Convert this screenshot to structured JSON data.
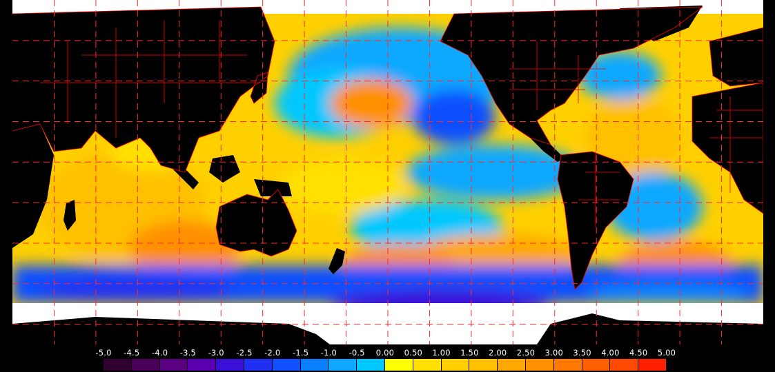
{
  "map": {
    "colors": {
      "land": "#000000",
      "ice": "#ffffff",
      "borders": "#ff0000",
      "grid": "#ff2a2a"
    }
  },
  "legend": {
    "labels": [
      "-5.0",
      "-4.5",
      "-4.0",
      "-3.5",
      "-3.0",
      "-2.5",
      "-2.0",
      "-1.5",
      "-1.0",
      "-0.5",
      "0.00",
      "0.50",
      "1.00",
      "1.50",
      "2.00",
      "2.50",
      "3.00",
      "3.50",
      "4.00",
      "4.50",
      "5.00"
    ],
    "colors": [
      "#300030",
      "#4a0058",
      "#5a0080",
      "#5a00b0",
      "#3a10d8",
      "#2030f0",
      "#1050ff",
      "#0a80ff",
      "#10a8ff",
      "#00c8ff",
      "#ffff00",
      "#ffe000",
      "#ffd000",
      "#ffc000",
      "#ffa800",
      "#ff9000",
      "#ff7800",
      "#ff6000",
      "#ff4800",
      "#ff2000"
    ]
  }
}
